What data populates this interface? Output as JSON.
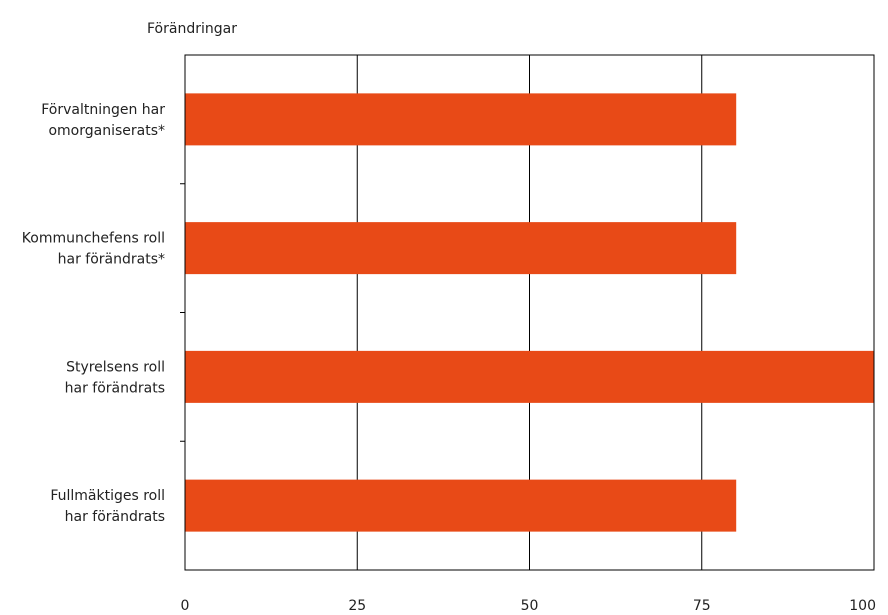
{
  "chart_data": {
    "type": "bar",
    "orientation": "horizontal",
    "title": "Förändringar",
    "xlabel": "",
    "ylabel": "",
    "categories": [
      [
        "Förvaltningen har",
        "omorganiserats*"
      ],
      [
        "Kommunchefens roll",
        "har förändrats*"
      ],
      [
        "Styrelsens roll",
        "har förändrats"
      ],
      [
        "Fullmäktiges roll",
        "har förändrats"
      ]
    ],
    "values": [
      80,
      80,
      100,
      80
    ],
    "xlim": [
      0,
      100
    ],
    "xticks": [
      "0",
      "25",
      "50",
      "75",
      "100"
    ],
    "grid": "vertical",
    "bar_color": "#e84a17",
    "legend": "none"
  }
}
